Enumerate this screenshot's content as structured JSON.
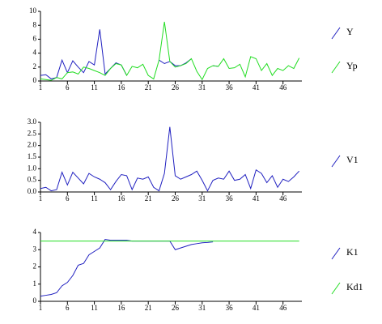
{
  "chart_data": [
    {
      "type": "line",
      "xlim": [
        1,
        49.5
      ],
      "xticks": [
        1,
        6,
        11,
        16,
        21,
        26,
        31,
        36,
        41,
        46
      ],
      "ylim": [
        0,
        10
      ],
      "yticks": [
        0,
        2,
        4,
        6,
        8,
        10
      ],
      "x": [
        1,
        2,
        3,
        4,
        5,
        6,
        7,
        8,
        9,
        10,
        11,
        12,
        13,
        14,
        15,
        16,
        17,
        18,
        19,
        20,
        21,
        22,
        23,
        24,
        25,
        26,
        27,
        28,
        29,
        30,
        31,
        32,
        33,
        34,
        35,
        36,
        37,
        38,
        39,
        40,
        41,
        42,
        43,
        44,
        45,
        46,
        47,
        48,
        49
      ],
      "series": [
        {
          "name": "Y",
          "color": "#2020c0",
          "values": [
            0.8,
            0.9,
            0.3,
            0.5,
            3.0,
            1.2,
            2.9,
            2.0,
            1.2,
            2.8,
            2.3,
            7.4,
            1.0,
            1.8,
            2.6,
            2.3,
            0.8,
            null,
            null,
            null,
            null,
            null,
            3.0,
            2.5,
            2.8,
            2.2,
            2.2,
            2.6,
            3.2,
            null,
            null,
            null,
            2.2,
            2.1,
            null,
            null,
            null,
            null,
            null,
            null,
            null,
            null,
            null,
            null,
            null,
            null,
            null,
            null,
            null
          ]
        },
        {
          "name": "Yp",
          "color": "#22dd22",
          "values": [
            0.3,
            0.2,
            0.1,
            0.5,
            0.3,
            1.2,
            1.3,
            1.0,
            2.0,
            1.8,
            1.5,
            1.2,
            0.8,
            1.8,
            2.5,
            2.3,
            0.8,
            2.1,
            1.9,
            2.4,
            0.8,
            0.3,
            3.0,
            8.5,
            2.8,
            2.0,
            2.2,
            2.5,
            3.2,
            1.4,
            0.2,
            1.8,
            2.2,
            2.1,
            3.2,
            1.8,
            1.9,
            2.4,
            0.6,
            3.5,
            3.2,
            1.5,
            2.5,
            0.8,
            1.8,
            1.5,
            2.2,
            1.8,
            3.3
          ]
        }
      ]
    },
    {
      "type": "line",
      "xlim": [
        1,
        49.5
      ],
      "xticks": [
        1,
        6,
        11,
        16,
        21,
        26,
        31,
        36,
        41,
        46
      ],
      "ylim": [
        0,
        3
      ],
      "yticks": [
        {
          "value": 0,
          "label": "0.0"
        },
        0.5,
        {
          "value": 1,
          "label": "1.0"
        },
        1.5,
        {
          "value": 2,
          "label": "2.0"
        },
        2.5,
        {
          "value": 3,
          "label": "3.0"
        }
      ],
      "x": [
        1,
        2,
        3,
        4,
        5,
        6,
        7,
        8,
        9,
        10,
        11,
        12,
        13,
        14,
        15,
        16,
        17,
        18,
        19,
        20,
        21,
        22,
        23,
        24,
        25,
        26,
        27,
        28,
        29,
        30,
        31,
        32,
        33,
        34,
        35,
        36,
        37,
        38,
        39,
        40,
        41,
        42,
        43,
        44,
        45,
        46,
        47,
        48,
        49
      ],
      "series": [
        {
          "name": "V1",
          "color": "#2020c0",
          "values": [
            0.15,
            0.2,
            0.05,
            0.1,
            0.85,
            0.3,
            0.85,
            0.6,
            0.35,
            0.8,
            0.65,
            0.55,
            0.4,
            0.1,
            0.45,
            0.75,
            0.7,
            0.1,
            0.6,
            0.55,
            0.65,
            0.2,
            0.05,
            0.8,
            2.8,
            0.7,
            0.55,
            0.65,
            0.75,
            0.9,
            0.5,
            0.05,
            0.5,
            0.6,
            0.55,
            0.9,
            0.5,
            0.55,
            0.75,
            0.15,
            0.95,
            0.8,
            0.4,
            0.7,
            0.2,
            0.55,
            0.45,
            0.65,
            0.9
          ]
        }
      ]
    },
    {
      "type": "line",
      "xlim": [
        1,
        49.5
      ],
      "xticks": [
        1,
        6,
        11,
        16,
        21,
        26,
        31,
        36,
        41,
        46
      ],
      "ylim": [
        0,
        4
      ],
      "yticks": [
        0,
        1,
        2,
        3,
        4
      ],
      "x": [
        1,
        2,
        3,
        4,
        5,
        6,
        7,
        8,
        9,
        10,
        11,
        12,
        13,
        14,
        15,
        16,
        17,
        18,
        19,
        20,
        21,
        22,
        23,
        24,
        25,
        26,
        27,
        28,
        29,
        30,
        31,
        32,
        33,
        34,
        35,
        36,
        37,
        38,
        39,
        40,
        41,
        42,
        43,
        44,
        45,
        46,
        47,
        48,
        49
      ],
      "series": [
        {
          "name": "K1",
          "color": "#2020c0",
          "values": [
            0.3,
            0.35,
            0.4,
            0.5,
            0.9,
            1.1,
            1.5,
            2.1,
            2.2,
            2.7,
            2.9,
            3.1,
            3.6,
            3.55,
            3.55,
            3.55,
            3.55,
            3.5,
            3.5,
            3.5,
            3.5,
            3.5,
            3.5,
            3.5,
            3.5,
            3.0,
            3.1,
            3.2,
            3.3,
            3.35,
            3.4,
            3.42,
            3.45,
            null,
            null,
            null,
            null,
            null,
            null,
            null,
            null,
            null,
            null,
            null,
            null,
            null,
            null,
            null,
            null
          ]
        },
        {
          "name": "Kd1",
          "color": "#22dd22",
          "values": [
            3.5,
            3.5,
            3.5,
            3.5,
            3.5,
            3.5,
            3.5,
            3.5,
            3.5,
            3.5,
            3.5,
            3.5,
            3.5,
            3.5,
            3.5,
            3.5,
            3.5,
            3.5,
            3.5,
            3.5,
            3.5,
            3.5,
            3.5,
            3.5,
            3.5,
            3.5,
            3.5,
            3.5,
            3.5,
            3.5,
            3.5,
            3.5,
            3.5,
            3.5,
            3.5,
            3.5,
            3.5,
            3.5,
            3.5,
            3.5,
            3.5,
            3.5,
            3.5,
            3.5,
            3.5,
            3.5,
            3.5,
            3.5,
            3.5
          ]
        }
      ]
    }
  ]
}
